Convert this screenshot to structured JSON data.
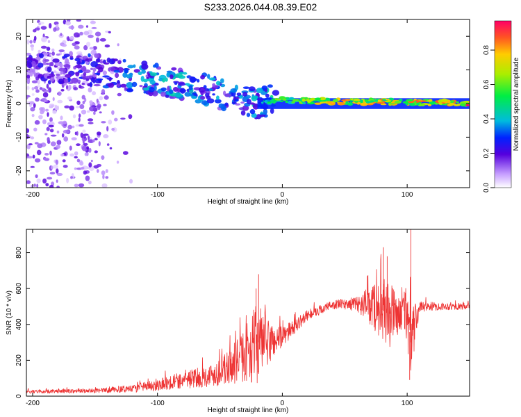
{
  "title": "S233.2026.044.08.39.E02",
  "colorbar": {
    "label": "Normalized spectral amplitude",
    "ticks": [
      "0.0",
      "0.2",
      "0.4",
      "0.6",
      "0.8"
    ],
    "tick_values": [
      0.0,
      0.2,
      0.4,
      0.6,
      0.8
    ],
    "range": [
      0,
      0.97
    ]
  },
  "chart_data": [
    {
      "type": "heatmap",
      "xlabel": "Height of straight line (km)",
      "ylabel": "Frequency (Hz)",
      "xlim": [
        -205,
        150
      ],
      "ylim": [
        -25,
        25
      ],
      "xticks": [
        -200,
        -100,
        0,
        100
      ],
      "yticks": [
        -20,
        -10,
        0,
        10,
        20
      ],
      "xtick_labels": [
        "-200",
        "-100",
        "0",
        "100"
      ],
      "ytick_labels": [
        "-20",
        "-10",
        "0",
        "10",
        "20"
      ],
      "description_series": [
        {
          "name": "scattered noise",
          "x_range": [
            -205,
            -120
          ],
          "freq_range": [
            -25,
            25
          ],
          "amplitude": 0.15
        },
        {
          "name": "drifting tone",
          "x": [
            -205,
            -150,
            -100,
            -70,
            -40,
            -20,
            -5
          ],
          "freq": [
            11,
            10,
            7,
            5,
            2,
            0,
            1
          ],
          "amplitude": [
            0.2,
            0.25,
            0.35,
            0.35,
            0.3,
            0.35,
            0.45
          ]
        },
        {
          "name": "carrier",
          "x": [
            -20,
            0,
            50,
            100,
            150
          ],
          "freq": [
            0.5,
            1,
            0.5,
            0.5,
            0
          ],
          "amplitude": [
            0.4,
            0.7,
            0.85,
            0.85,
            0.97
          ]
        }
      ]
    },
    {
      "type": "line",
      "xlabel": "Height of straight line (km)",
      "ylabel": "SNR (10 * v/v)",
      "xlim": [
        -205,
        150
      ],
      "ylim": [
        0,
        930
      ],
      "xticks": [
        -200,
        -100,
        0,
        100
      ],
      "yticks": [
        0,
        200,
        400,
        600,
        800
      ],
      "xtick_labels": [
        "-200",
        "-100",
        "0",
        "100"
      ],
      "ytick_labels": [
        "0",
        "200",
        "400",
        "600",
        "800"
      ],
      "color": "#ee3333",
      "envelope": {
        "x": [
          -205,
          -150,
          -120,
          -100,
          -80,
          -60,
          -45,
          -30,
          -20,
          -10,
          0,
          10,
          20,
          40,
          60,
          75,
          85,
          95,
          100,
          103,
          110,
          130,
          150
        ],
        "mean": [
          25,
          30,
          40,
          65,
          90,
          110,
          150,
          230,
          300,
          300,
          330,
          390,
          450,
          510,
          515,
          500,
          460,
          450,
          470,
          300,
          500,
          500,
          500
        ],
        "spread": [
          10,
          12,
          20,
          35,
          50,
          60,
          90,
          150,
          230,
          120,
          60,
          40,
          30,
          25,
          40,
          150,
          200,
          80,
          200,
          200,
          30,
          20,
          20
        ]
      }
    }
  ]
}
